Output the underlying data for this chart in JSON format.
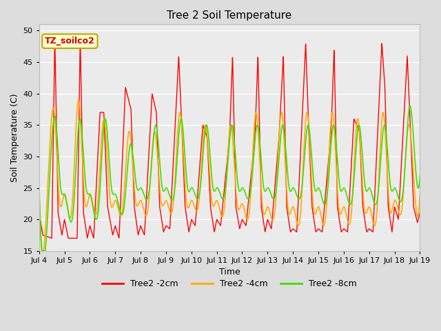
{
  "title": "Tree 2 Soil Temperature",
  "xlabel": "Time",
  "ylabel": "Soil Temperature (C)",
  "ylim": [
    15,
    51
  ],
  "yticks": [
    15,
    20,
    25,
    30,
    35,
    40,
    45,
    50
  ],
  "annotation_text": "TZ_soilco2",
  "annotation_box_facecolor": "#ffffcc",
  "annotation_box_edgecolor": "#bbaa00",
  "annotation_text_color": "#cc0000",
  "fig_facecolor": "#dddddd",
  "ax_facecolor": "#ebebeb",
  "grid_color": "#ffffff",
  "line_colors": [
    "#ff0000",
    "#ffaa00",
    "#44dd00"
  ],
  "legend_labels": [
    "Tree2 -2cm",
    "Tree2 -4cm",
    "Tree2 -8cm"
  ],
  "x_tick_labels": [
    "Jul 4",
    "Jul 5",
    "Jul 6",
    "Jul 7",
    "Jul 8",
    "Jul 9",
    "Jul 10",
    "Jul 11",
    "Jul 12",
    "Jul 13",
    "Jul 14",
    "Jul 15",
    "Jul 16",
    "Jul 17",
    "Jul 18",
    "Jul 19"
  ],
  "n_days": 15,
  "key_times_2cm": [
    0.0,
    0.15,
    0.5,
    0.62,
    0.75,
    0.9,
    1.0,
    1.15,
    1.5,
    1.62,
    1.75,
    1.9,
    2.0,
    2.15,
    2.4,
    2.55,
    2.7,
    2.9,
    3.0,
    3.15,
    3.4,
    3.62,
    3.75,
    3.9,
    4.0,
    4.15,
    4.45,
    4.62,
    4.75,
    4.9,
    5.0,
    5.15,
    5.5,
    5.62,
    5.75,
    5.9,
    6.0,
    6.15,
    6.45,
    6.62,
    6.75,
    6.9,
    7.0,
    7.15,
    7.5,
    7.62,
    7.75,
    7.9,
    8.0,
    8.15,
    8.5,
    8.62,
    8.75,
    8.9,
    9.0,
    9.15,
    9.45,
    9.62,
    9.75,
    9.9,
    10.0,
    10.15,
    10.5,
    10.62,
    10.75,
    10.9,
    11.0,
    11.15,
    11.5,
    11.62,
    11.75,
    11.9,
    12.0,
    12.15,
    12.4,
    12.62,
    12.75,
    12.9,
    13.0,
    13.15,
    13.5,
    13.62,
    13.75,
    13.9,
    14.0,
    14.15,
    14.5,
    14.62,
    14.75,
    14.9,
    15.0
  ],
  "key_vals_2cm": [
    21.0,
    17.5,
    17.0,
    49.0,
    21.0,
    17.5,
    20.0,
    17.0,
    17.0,
    49.0,
    21.0,
    17.0,
    19.0,
    17.0,
    37.0,
    37.0,
    22.0,
    17.5,
    19.0,
    17.0,
    41.0,
    37.5,
    22.0,
    17.5,
    19.0,
    17.5,
    40.0,
    37.0,
    22.0,
    18.0,
    19.0,
    18.5,
    46.0,
    35.0,
    22.0,
    18.0,
    20.0,
    19.0,
    35.0,
    33.0,
    22.0,
    18.0,
    20.0,
    19.0,
    33.0,
    46.0,
    22.0,
    18.5,
    20.0,
    19.0,
    33.0,
    46.0,
    22.0,
    18.0,
    20.0,
    18.5,
    33.0,
    46.0,
    22.0,
    18.0,
    18.5,
    18.0,
    48.0,
    34.0,
    22.0,
    18.0,
    18.5,
    18.0,
    34.0,
    47.0,
    22.0,
    18.0,
    18.5,
    18.0,
    36.0,
    34.0,
    22.0,
    18.0,
    18.5,
    18.0,
    48.0,
    41.0,
    22.0,
    18.0,
    22.0,
    20.0,
    46.0,
    35.0,
    22.0,
    19.5,
    21.0
  ],
  "key_times_4cm": [
    0.0,
    0.3,
    0.6,
    0.8,
    1.0,
    1.3,
    1.55,
    1.8,
    2.0,
    2.3,
    2.55,
    2.8,
    3.0,
    3.3,
    3.55,
    3.8,
    4.0,
    4.3,
    4.55,
    4.8,
    5.0,
    5.3,
    5.55,
    5.8,
    6.0,
    6.3,
    6.55,
    6.8,
    7.0,
    7.3,
    7.55,
    7.8,
    8.0,
    8.3,
    8.55,
    8.8,
    9.0,
    9.3,
    9.55,
    9.8,
    10.0,
    10.3,
    10.55,
    10.8,
    11.0,
    11.3,
    11.55,
    11.8,
    12.0,
    12.3,
    12.55,
    12.8,
    13.0,
    13.3,
    13.55,
    13.8,
    14.0,
    14.3,
    14.55,
    14.8,
    15.0
  ],
  "key_vals_4cm": [
    25.0,
    22.0,
    37.0,
    23.0,
    24.0,
    22.0,
    39.0,
    23.0,
    24.0,
    22.0,
    36.0,
    23.0,
    23.0,
    22.0,
    34.0,
    23.0,
    23.0,
    22.0,
    34.0,
    23.0,
    23.0,
    23.0,
    37.0,
    23.0,
    23.0,
    23.0,
    35.0,
    23.0,
    23.0,
    22.0,
    35.0,
    22.5,
    22.5,
    22.0,
    37.0,
    22.0,
    22.0,
    22.0,
    37.0,
    22.0,
    22.0,
    21.0,
    37.0,
    22.0,
    22.0,
    21.0,
    37.0,
    22.0,
    22.0,
    21.0,
    36.0,
    22.0,
    22.0,
    21.0,
    37.0,
    22.0,
    23.0,
    22.0,
    35.0,
    24.0,
    24.0
  ],
  "key_times_8cm": [
    0.0,
    0.35,
    0.65,
    0.85,
    1.0,
    1.35,
    1.6,
    1.85,
    2.0,
    2.35,
    2.6,
    2.85,
    3.0,
    3.35,
    3.6,
    3.85,
    4.0,
    4.35,
    4.6,
    4.85,
    5.0,
    5.35,
    5.6,
    5.85,
    6.0,
    6.35,
    6.6,
    6.85,
    7.0,
    7.35,
    7.6,
    7.85,
    8.0,
    8.35,
    8.6,
    8.85,
    9.0,
    9.35,
    9.6,
    9.85,
    10.0,
    10.35,
    10.6,
    10.85,
    11.0,
    11.35,
    11.6,
    11.85,
    12.0,
    12.35,
    12.6,
    12.85,
    13.0,
    13.35,
    13.6,
    13.85,
    14.0,
    14.35,
    14.6,
    14.85,
    15.0
  ],
  "key_vals_8cm": [
    26.0,
    21.5,
    36.0,
    25.0,
    24.0,
    21.5,
    36.0,
    25.0,
    24.0,
    22.0,
    36.0,
    25.0,
    24.0,
    22.0,
    32.0,
    25.0,
    25.0,
    25.0,
    35.0,
    25.0,
    25.0,
    25.0,
    36.0,
    25.0,
    25.0,
    25.0,
    35.0,
    25.0,
    25.0,
    25.0,
    35.0,
    25.0,
    25.0,
    25.0,
    35.0,
    25.0,
    25.0,
    25.0,
    35.0,
    25.0,
    25.0,
    25.0,
    35.0,
    25.0,
    25.0,
    24.0,
    35.0,
    25.0,
    25.0,
    24.0,
    35.0,
    25.0,
    25.0,
    24.0,
    35.0,
    25.0,
    25.0,
    25.0,
    38.0,
    27.0,
    27.0
  ]
}
